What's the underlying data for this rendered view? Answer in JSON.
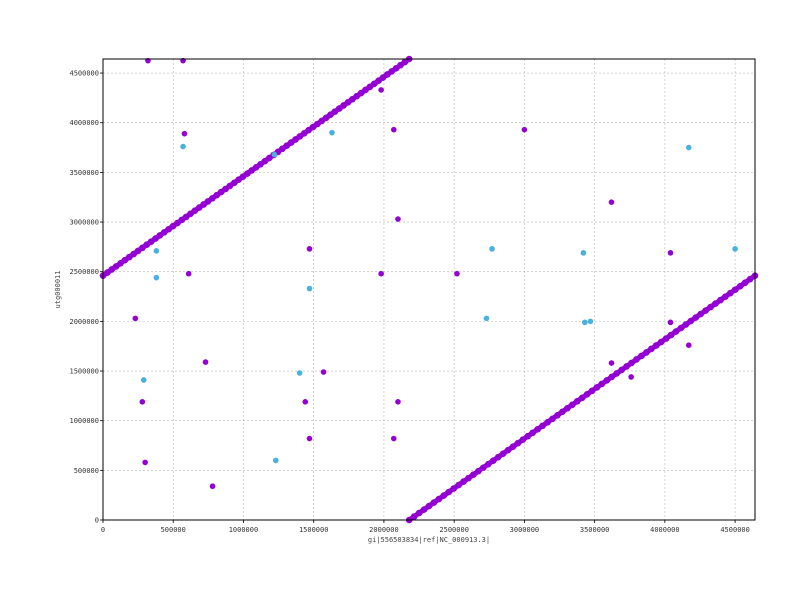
{
  "chart_data": {
    "type": "scatter",
    "title": "",
    "xlabel": "gi|556503834|ref|NC_000913.3|",
    "ylabel": "utg000011",
    "xlim": [
      0,
      4641652
    ],
    "ylim": [
      0,
      4641652
    ],
    "grid": true,
    "x_ticks": [
      {
        "value": 0,
        "label": "0"
      },
      {
        "value": 500000,
        "label": "500000"
      },
      {
        "value": 1000000,
        "label": "1000000"
      },
      {
        "value": 1500000,
        "label": "1500000"
      },
      {
        "value": 2000000,
        "label": "2000000"
      },
      {
        "value": 2500000,
        "label": "2500000"
      },
      {
        "value": 3000000,
        "label": "3000000"
      },
      {
        "value": 3500000,
        "label": "3500000"
      },
      {
        "value": 4000000,
        "label": "4000000"
      },
      {
        "value": 4500000,
        "label": "4500000"
      }
    ],
    "y_ticks": [
      {
        "value": 0,
        "label": "0"
      },
      {
        "value": 500000,
        "label": "500000"
      },
      {
        "value": 1000000,
        "label": "1000000"
      },
      {
        "value": 1500000,
        "label": "1500000"
      },
      {
        "value": 2000000,
        "label": "2000000"
      },
      {
        "value": 2500000,
        "label": "2500000"
      },
      {
        "value": 3000000,
        "label": "3000000"
      },
      {
        "value": 3500000,
        "label": "3500000"
      },
      {
        "value": 4000000,
        "label": "4000000"
      },
      {
        "value": 4500000,
        "label": "4500000"
      }
    ],
    "series": [
      {
        "color": "#9400d3",
        "lines": [
          {
            "x1": 0,
            "y1": 2460000,
            "x2": 2180000,
            "y2": 4641652
          },
          {
            "x1": 2180000,
            "y1": 0,
            "x2": 4641652,
            "y2": 2460000
          }
        ],
        "points": [
          [
            320000,
            4625000
          ],
          [
            570000,
            4625000
          ],
          [
            1980000,
            4330000
          ],
          [
            2070000,
            3930000
          ],
          [
            3000000,
            3930000
          ],
          [
            580000,
            3890000
          ],
          [
            3620000,
            3200000
          ],
          [
            2100000,
            3030000
          ],
          [
            1470000,
            2730000
          ],
          [
            4040000,
            2690000
          ],
          [
            610000,
            2480000
          ],
          [
            1980000,
            2480000
          ],
          [
            2520000,
            2480000
          ],
          [
            230000,
            2030000
          ],
          [
            4040000,
            1990000
          ],
          [
            4170000,
            1760000
          ],
          [
            3620000,
            1580000
          ],
          [
            730000,
            1590000
          ],
          [
            1570000,
            1490000
          ],
          [
            3760000,
            1440000
          ],
          [
            280000,
            1190000
          ],
          [
            1440000,
            1190000
          ],
          [
            2100000,
            1190000
          ],
          [
            1470000,
            820000
          ],
          [
            2070000,
            820000
          ],
          [
            300000,
            580000
          ],
          [
            780000,
            340000
          ]
        ]
      },
      {
        "color": "#4ab0e0",
        "points": [
          [
            570000,
            3760000
          ],
          [
            1220000,
            3680000
          ],
          [
            1630000,
            3900000
          ],
          [
            4170000,
            3750000
          ],
          [
            380000,
            2710000
          ],
          [
            2770000,
            2730000
          ],
          [
            3420000,
            2690000
          ],
          [
            4500000,
            2730000
          ],
          [
            380000,
            2440000
          ],
          [
            1470000,
            2330000
          ],
          [
            2730000,
            2030000
          ],
          [
            3430000,
            1990000
          ],
          [
            3470000,
            2000000
          ],
          [
            290000,
            1410000
          ],
          [
            1400000,
            1480000
          ],
          [
            1230000,
            600000
          ]
        ]
      }
    ]
  }
}
